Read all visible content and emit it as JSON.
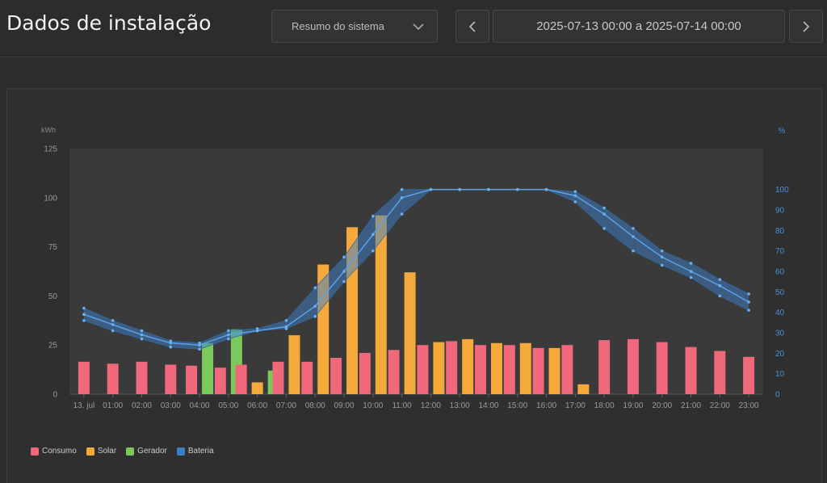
{
  "header": {
    "title": "Dados de instalação",
    "view_select": "Resumo do sistema",
    "date_range": "2025-07-13 00:00 a 2025-07-14 00:00"
  },
  "colors": {
    "consumo": "#f0687c",
    "solar": "#f4a93a",
    "gerador": "#7cc85a",
    "bateria": "#3d7fc7"
  },
  "chart_data": {
    "type": "bar",
    "left_unit": "kWh",
    "right_unit": "%",
    "ylim": [
      0,
      125
    ],
    "y2lim": [
      0,
      120
    ],
    "yticks": [
      "0",
      "25",
      "50",
      "75",
      "100",
      "125"
    ],
    "y2ticks": [
      "0",
      "10",
      "20",
      "30",
      "40",
      "50",
      "60",
      "70",
      "80",
      "90",
      "100"
    ],
    "categories": [
      "13. jul",
      "01:00",
      "02:00",
      "03:00",
      "04:00",
      "05:00",
      "06:00",
      "07:00",
      "08:00",
      "09:00",
      "10:00",
      "11:00",
      "12:00",
      "13:00",
      "14:00",
      "15:00",
      "16:00",
      "17:00",
      "18:00",
      "19:00",
      "20:00",
      "21:00",
      "22:00",
      "23:00"
    ],
    "series": [
      {
        "name": "Consumo",
        "values": [
          16.5,
          15.5,
          16.5,
          15,
          14.5,
          13.5,
          15,
          16.5,
          16.5,
          18.5,
          21,
          22.5,
          25,
          27,
          25,
          25,
          23.5,
          25,
          27.5,
          28,
          26.5,
          24,
          22,
          19
        ]
      },
      {
        "name": "Solar",
        "values": [
          0,
          0,
          0,
          0,
          0,
          0,
          6,
          30,
          66,
          85,
          91,
          62,
          26.5,
          28,
          26,
          26,
          23.5,
          5,
          0,
          0,
          0,
          0,
          0,
          0
        ]
      },
      {
        "name": "Gerador",
        "values": [
          0,
          0,
          0,
          0,
          26,
          33,
          12,
          0,
          0,
          0,
          0,
          0,
          0,
          0,
          0,
          0,
          0,
          0,
          0,
          0,
          0,
          0,
          0,
          0
        ]
      },
      {
        "name": "Bateria",
        "mean": [
          39,
          34,
          29,
          25,
          24,
          29,
          31,
          33,
          43,
          60,
          78,
          96,
          100,
          100,
          100,
          100,
          100,
          97,
          88,
          77,
          67,
          60,
          53,
          45
        ],
        "min": [
          36,
          31,
          27,
          23,
          22,
          27,
          31,
          32,
          38,
          55,
          70,
          88,
          100,
          100,
          100,
          100,
          100,
          94,
          81,
          70,
          63,
          57,
          48,
          41
        ],
        "max": [
          42,
          36,
          31,
          26,
          25,
          31,
          32,
          36,
          52,
          67,
          87,
          100,
          100,
          100,
          100,
          100,
          100,
          99,
          91,
          81,
          70,
          64,
          56,
          49
        ]
      }
    ]
  }
}
